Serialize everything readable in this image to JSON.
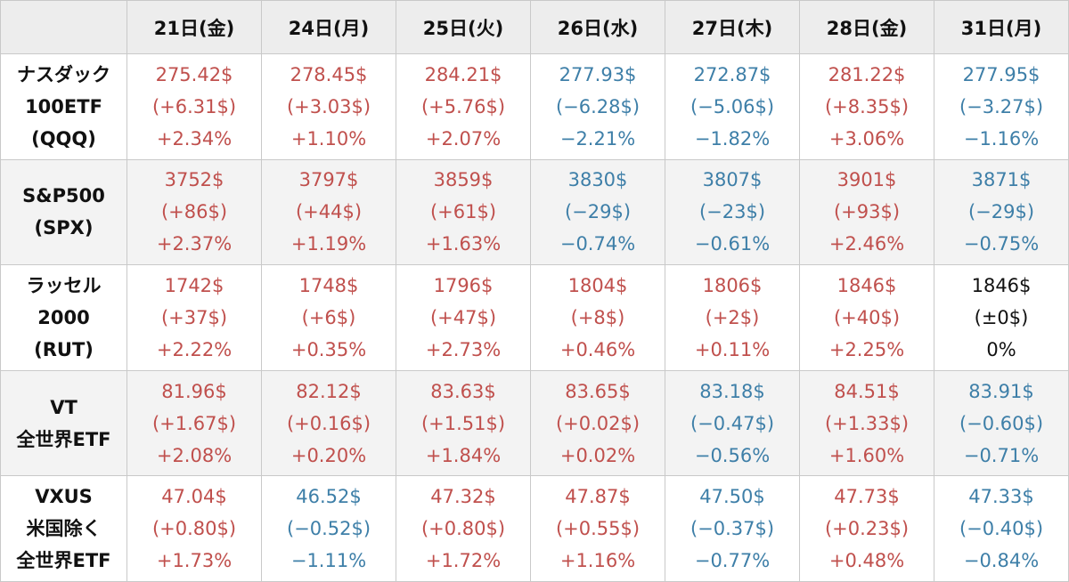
{
  "chart_data": {
    "type": "table",
    "columns": [
      "",
      "21日(金)",
      "24日(月)",
      "25日(火)",
      "26日(水)",
      "27日(木)",
      "28日(金)",
      "31日(月)"
    ],
    "rows": [
      {
        "label": [
          "ナスダック",
          "100ETF",
          "(QQQ)"
        ],
        "cells": [
          {
            "price": "275.42$",
            "change": "(+6.31$)",
            "pct": "+2.34%",
            "dir": "up"
          },
          {
            "price": "278.45$",
            "change": "(+3.03$)",
            "pct": "+1.10%",
            "dir": "up"
          },
          {
            "price": "284.21$",
            "change": "(+5.76$)",
            "pct": "+2.07%",
            "dir": "up"
          },
          {
            "price": "277.93$",
            "change": "(−6.28$)",
            "pct": "−2.21%",
            "dir": "down"
          },
          {
            "price": "272.87$",
            "change": "(−5.06$)",
            "pct": "−1.82%",
            "dir": "down"
          },
          {
            "price": "281.22$",
            "change": "(+8.35$)",
            "pct": "+3.06%",
            "dir": "up"
          },
          {
            "price": "277.95$",
            "change": "(−3.27$)",
            "pct": "−1.16%",
            "dir": "down"
          }
        ]
      },
      {
        "label": [
          "S&P500",
          "(SPX)"
        ],
        "cells": [
          {
            "price": "3752$",
            "change": "(+86$)",
            "pct": "+2.37%",
            "dir": "up"
          },
          {
            "price": "3797$",
            "change": "(+44$)",
            "pct": "+1.19%",
            "dir": "up"
          },
          {
            "price": "3859$",
            "change": "(+61$)",
            "pct": "+1.63%",
            "dir": "up"
          },
          {
            "price": "3830$",
            "change": "(−29$)",
            "pct": "−0.74%",
            "dir": "down"
          },
          {
            "price": "3807$",
            "change": "(−23$)",
            "pct": "−0.61%",
            "dir": "down"
          },
          {
            "price": "3901$",
            "change": "(+93$)",
            "pct": "+2.46%",
            "dir": "up"
          },
          {
            "price": "3871$",
            "change": "(−29$)",
            "pct": "−0.75%",
            "dir": "down"
          }
        ]
      },
      {
        "label": [
          "ラッセル",
          "2000",
          "(RUT)"
        ],
        "cells": [
          {
            "price": "1742$",
            "change": "(+37$)",
            "pct": "+2.22%",
            "dir": "up"
          },
          {
            "price": "1748$",
            "change": "(+6$)",
            "pct": "+0.35%",
            "dir": "up"
          },
          {
            "price": "1796$",
            "change": "(+47$)",
            "pct": "+2.73%",
            "dir": "up"
          },
          {
            "price": "1804$",
            "change": "(+8$)",
            "pct": "+0.46%",
            "dir": "up"
          },
          {
            "price": "1806$",
            "change": "(+2$)",
            "pct": "+0.11%",
            "dir": "up"
          },
          {
            "price": "1846$",
            "change": "(+40$)",
            "pct": "+2.25%",
            "dir": "up"
          },
          {
            "price": "1846$",
            "change": "(±0$)",
            "pct": "0%",
            "dir": "flat"
          }
        ]
      },
      {
        "label": [
          "VT",
          "全世界ETF"
        ],
        "cells": [
          {
            "price": "81.96$",
            "change": "(+1.67$)",
            "pct": "+2.08%",
            "dir": "up"
          },
          {
            "price": "82.12$",
            "change": "(+0.16$)",
            "pct": "+0.20%",
            "dir": "up"
          },
          {
            "price": "83.63$",
            "change": "(+1.51$)",
            "pct": "+1.84%",
            "dir": "up"
          },
          {
            "price": "83.65$",
            "change": "(+0.02$)",
            "pct": "+0.02%",
            "dir": "up"
          },
          {
            "price": "83.18$",
            "change": "(−0.47$)",
            "pct": "−0.56%",
            "dir": "down"
          },
          {
            "price": "84.51$",
            "change": "(+1.33$)",
            "pct": "+1.60%",
            "dir": "up"
          },
          {
            "price": "83.91$",
            "change": "(−0.60$)",
            "pct": "−0.71%",
            "dir": "down"
          }
        ]
      },
      {
        "label": [
          "VXUS",
          "米国除く",
          "全世界ETF"
        ],
        "cells": [
          {
            "price": "47.04$",
            "change": "(+0.80$)",
            "pct": "+1.73%",
            "dir": "up"
          },
          {
            "price": "46.52$",
            "change": "(−0.52$)",
            "pct": "−1.11%",
            "dir": "down"
          },
          {
            "price": "47.32$",
            "change": "(+0.80$)",
            "pct": "+1.72%",
            "dir": "up"
          },
          {
            "price": "47.87$",
            "change": "(+0.55$)",
            "pct": "+1.16%",
            "dir": "up"
          },
          {
            "price": "47.50$",
            "change": "(−0.37$)",
            "pct": "−0.77%",
            "dir": "down"
          },
          {
            "price": "47.73$",
            "change": "(+0.23$)",
            "pct": "+0.48%",
            "dir": "up"
          },
          {
            "price": "47.33$",
            "change": "(−0.40$)",
            "pct": "−0.84%",
            "dir": "down"
          }
        ]
      }
    ]
  },
  "colors": {
    "up": "#c0504d",
    "down": "#3e7fa8",
    "flat": "#111111",
    "header_bg": "#ededed",
    "row_alt_bg": "#f3f3f3",
    "border": "#c9c9c9"
  }
}
